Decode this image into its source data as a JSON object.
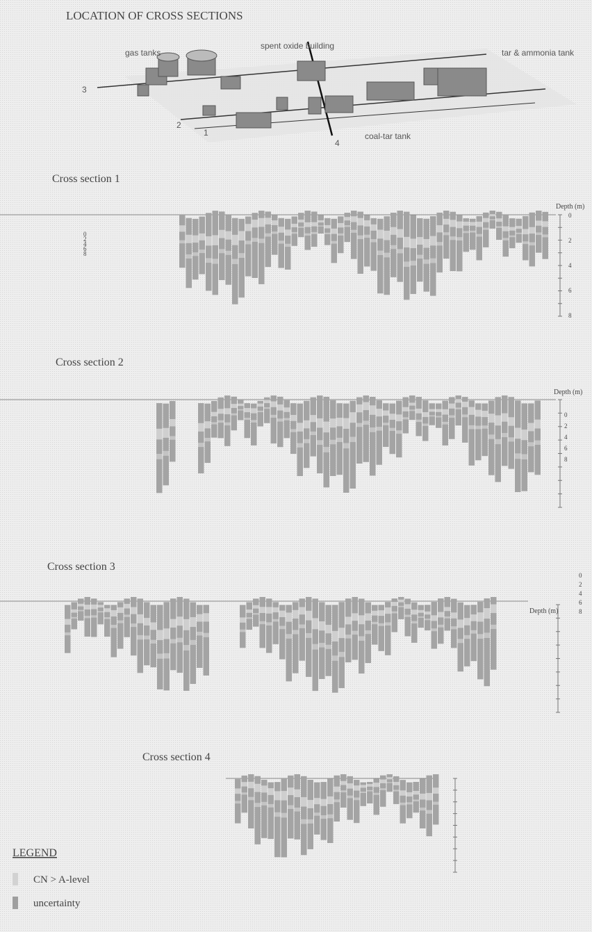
{
  "map": {
    "title": "LOCATION OF CROSS SECTIONS",
    "labels": [
      "gas tanks",
      "spent oxide building",
      "tar & ammonia tank",
      "coal-tar tank"
    ],
    "section_numbers": [
      "3",
      "2",
      "1",
      "4"
    ]
  },
  "sections": [
    {
      "title": "Cross section 1",
      "axis_label": "Depth (m)",
      "depth_ticks": [
        "0",
        "2",
        "4",
        "6",
        "8"
      ],
      "side_ticks": [
        "0",
        "2",
        "4",
        "6",
        "8"
      ]
    },
    {
      "title": "Cross section 2",
      "axis_label": "Depth (m)",
      "side_ticks": [
        "0",
        "2",
        "4",
        "6",
        "8"
      ]
    },
    {
      "title": "Cross section 3",
      "axis_label": "Depth (m)",
      "side_ticks": [
        "0",
        "2",
        "4",
        "6",
        "8"
      ]
    },
    {
      "title": "Cross section 4"
    }
  ],
  "legend": {
    "title": "LEGEND",
    "items": [
      "CN > A-level",
      "uncertainty"
    ]
  }
}
